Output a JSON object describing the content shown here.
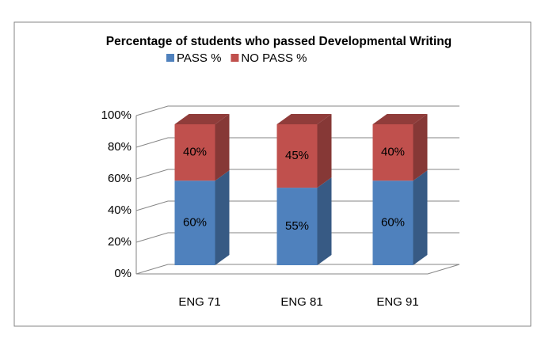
{
  "chart_data": {
    "type": "bar3d_stacked",
    "title": "Percentage of students who passed Developmental Writing",
    "categories": [
      "ENG 71",
      "ENG 81",
      "ENG 91"
    ],
    "series": [
      {
        "name": "PASS %",
        "color": "#4f81bd",
        "values": [
          60,
          55,
          60
        ],
        "value_labels": [
          "60%",
          "55%",
          "60%"
        ]
      },
      {
        "name": "NO PASS %",
        "color": "#c0504d",
        "values": [
          40,
          45,
          40
        ],
        "value_labels": [
          "40%",
          "45%",
          "40%"
        ]
      }
    ],
    "ylim": [
      0,
      100
    ],
    "yticks": [
      {
        "value": 0,
        "label": "0%"
      },
      {
        "value": 20,
        "label": "20%"
      },
      {
        "value": 40,
        "label": "40%"
      },
      {
        "value": 60,
        "label": "60%"
      },
      {
        "value": 80,
        "label": "80%"
      },
      {
        "value": 100,
        "label": "100%"
      }
    ],
    "grid": true,
    "legend": "top"
  }
}
